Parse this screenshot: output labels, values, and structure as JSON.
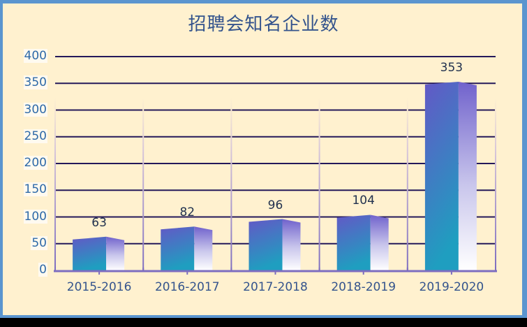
{
  "chart_data": {
    "type": "bar",
    "title": "招聘会知名企业数",
    "categories": [
      "2015-2016",
      "2016-2017",
      "2017-2018",
      "2018-2019",
      "2019-2020"
    ],
    "values": [
      63,
      82,
      96,
      104,
      353
    ],
    "xlabel": "",
    "ylabel": "",
    "ylim": [
      0,
      400
    ],
    "yticks": [
      0,
      50,
      100,
      150,
      200,
      250,
      300,
      350,
      400
    ],
    "grid": true,
    "legend": null,
    "data_labels": true,
    "style": "3d-gradient-bar"
  },
  "colors": {
    "frame": "#5b95cf",
    "background": "#fff1cf",
    "title": "#34548d",
    "gridline": "#24195a",
    "axis": "#7d6dc0",
    "bar_front_top": "#6358c6",
    "bar_front_bottom": "#1f9ec0",
    "bar_side_top": "#7a6ad0",
    "bar_side_bottom": "#ffffff"
  },
  "ylabels": [
    "0",
    "50",
    "100",
    "150",
    "200",
    "250",
    "300",
    "350",
    "400"
  ],
  "labels": [
    "63",
    "82",
    "96",
    "104",
    "353"
  ]
}
